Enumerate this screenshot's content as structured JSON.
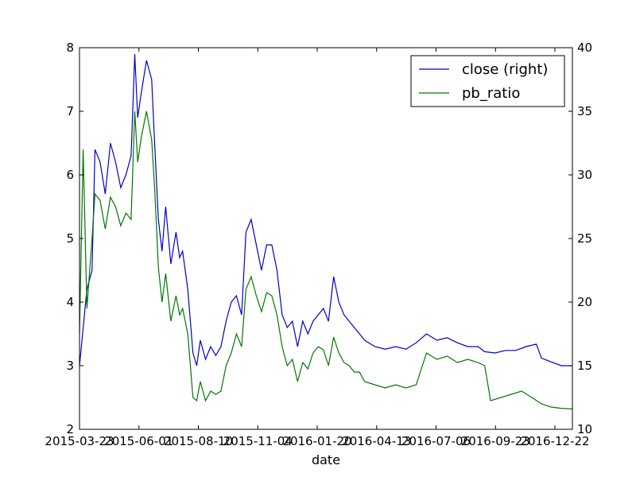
{
  "chart_data": {
    "type": "line",
    "title": "",
    "xlabel": "date",
    "ylabel_left": "",
    "ylabel_right": "",
    "x_tick_labels": [
      "2015-03-23",
      "2015-06-01",
      "2015-08-10",
      "2015-11-04",
      "2016-01-20",
      "2016-04-13",
      "2016-07-06",
      "2016-09-23",
      "2016-12-22"
    ],
    "x_range": [
      "2015-03-23",
      "2017-01-20"
    ],
    "y_left": {
      "range": [
        2,
        8
      ],
      "ticks": [
        2,
        3,
        4,
        5,
        6,
        7,
        8
      ]
    },
    "y_right": {
      "range": [
        10,
        40
      ],
      "ticks": [
        10,
        15,
        20,
        25,
        30,
        35,
        40
      ]
    },
    "grid": false,
    "legend_position": "top-right",
    "series": [
      {
        "name": "close (right)",
        "axis": "right",
        "color": "#0000cc",
        "points": [
          [
            "2015-03-23",
            15.0
          ],
          [
            "2015-04-02",
            21.0
          ],
          [
            "2015-04-09",
            22.5
          ],
          [
            "2015-04-13",
            32.0
          ],
          [
            "2015-04-20",
            31.0
          ],
          [
            "2015-04-27",
            28.5
          ],
          [
            "2015-05-04",
            32.5
          ],
          [
            "2015-05-11",
            31.0
          ],
          [
            "2015-05-18",
            29.0
          ],
          [
            "2015-05-25",
            30.0
          ],
          [
            "2015-06-01",
            31.5
          ],
          [
            "2015-06-06",
            39.5
          ],
          [
            "2015-06-10",
            34.5
          ],
          [
            "2015-06-15",
            36.5
          ],
          [
            "2015-06-22",
            39.0
          ],
          [
            "2015-06-29",
            37.5
          ],
          [
            "2015-07-03",
            32.5
          ],
          [
            "2015-07-08",
            26.5
          ],
          [
            "2015-07-13",
            24.0
          ],
          [
            "2015-07-18",
            27.5
          ],
          [
            "2015-07-25",
            23.0
          ],
          [
            "2015-08-01",
            25.5
          ],
          [
            "2015-08-06",
            23.5
          ],
          [
            "2015-08-10",
            24.0
          ],
          [
            "2015-08-17",
            21.0
          ],
          [
            "2015-08-24",
            16.0
          ],
          [
            "2015-08-29",
            15.0
          ],
          [
            "2015-09-03",
            17.0
          ],
          [
            "2015-09-10",
            15.5
          ],
          [
            "2015-09-17",
            16.5
          ],
          [
            "2015-09-24",
            15.8
          ],
          [
            "2015-10-01",
            16.5
          ],
          [
            "2015-10-08",
            18.5
          ],
          [
            "2015-10-15",
            20.0
          ],
          [
            "2015-10-22",
            20.5
          ],
          [
            "2015-10-29",
            19.0
          ],
          [
            "2015-11-04",
            25.5
          ],
          [
            "2015-11-11",
            26.5
          ],
          [
            "2015-11-18",
            24.5
          ],
          [
            "2015-11-25",
            22.5
          ],
          [
            "2015-12-02",
            24.5
          ],
          [
            "2015-12-09",
            24.5
          ],
          [
            "2015-12-16",
            22.5
          ],
          [
            "2015-12-23",
            19.0
          ],
          [
            "2015-12-30",
            18.0
          ],
          [
            "2016-01-06",
            18.5
          ],
          [
            "2016-01-13",
            16.5
          ],
          [
            "2016-01-20",
            18.5
          ],
          [
            "2016-01-27",
            17.5
          ],
          [
            "2016-02-03",
            18.5
          ],
          [
            "2016-02-10",
            19.0
          ],
          [
            "2016-02-17",
            19.5
          ],
          [
            "2016-02-24",
            18.5
          ],
          [
            "2016-03-02",
            22.0
          ],
          [
            "2016-03-09",
            20.0
          ],
          [
            "2016-03-16",
            19.0
          ],
          [
            "2016-03-23",
            18.5
          ],
          [
            "2016-03-30",
            18.0
          ],
          [
            "2016-04-06",
            17.5
          ],
          [
            "2016-04-13",
            17.0
          ],
          [
            "2016-04-27",
            16.5
          ],
          [
            "2016-05-11",
            16.3
          ],
          [
            "2016-05-25",
            16.5
          ],
          [
            "2016-06-08",
            16.3
          ],
          [
            "2016-06-22",
            16.8
          ],
          [
            "2016-07-06",
            17.5
          ],
          [
            "2016-07-20",
            17.0
          ],
          [
            "2016-08-03",
            17.2
          ],
          [
            "2016-08-17",
            16.8
          ],
          [
            "2016-08-31",
            16.5
          ],
          [
            "2016-09-14",
            16.5
          ],
          [
            "2016-09-23",
            16.1
          ],
          [
            "2016-10-07",
            16.0
          ],
          [
            "2016-10-21",
            16.2
          ],
          [
            "2016-11-04",
            16.2
          ],
          [
            "2016-11-18",
            16.5
          ],
          [
            "2016-12-02",
            16.7
          ],
          [
            "2016-12-09",
            15.6
          ],
          [
            "2016-12-22",
            15.3
          ],
          [
            "2017-01-05",
            15.0
          ],
          [
            "2017-01-20",
            15.0
          ]
        ]
      },
      {
        "name": "pb_ratio",
        "axis": "left",
        "color": "#007700",
        "points": [
          [
            "2015-03-23",
            3.5
          ],
          [
            "2015-03-28",
            6.4
          ],
          [
            "2015-04-02",
            3.9
          ],
          [
            "2015-04-09",
            5.0
          ],
          [
            "2015-04-13",
            5.7
          ],
          [
            "2015-04-20",
            5.6
          ],
          [
            "2015-04-27",
            5.15
          ],
          [
            "2015-05-04",
            5.65
          ],
          [
            "2015-05-11",
            5.5
          ],
          [
            "2015-05-18",
            5.2
          ],
          [
            "2015-05-25",
            5.4
          ],
          [
            "2015-06-01",
            5.3
          ],
          [
            "2015-06-06",
            7.0
          ],
          [
            "2015-06-10",
            6.2
          ],
          [
            "2015-06-15",
            6.6
          ],
          [
            "2015-06-22",
            7.0
          ],
          [
            "2015-06-29",
            6.55
          ],
          [
            "2015-07-03",
            5.8
          ],
          [
            "2015-07-08",
            4.55
          ],
          [
            "2015-07-13",
            4.0
          ],
          [
            "2015-07-18",
            4.45
          ],
          [
            "2015-07-25",
            3.7
          ],
          [
            "2015-08-01",
            4.1
          ],
          [
            "2015-08-06",
            3.8
          ],
          [
            "2015-08-10",
            3.9
          ],
          [
            "2015-08-17",
            3.5
          ],
          [
            "2015-08-24",
            2.5
          ],
          [
            "2015-08-29",
            2.45
          ],
          [
            "2015-09-03",
            2.75
          ],
          [
            "2015-09-10",
            2.45
          ],
          [
            "2015-09-17",
            2.6
          ],
          [
            "2015-09-24",
            2.55
          ],
          [
            "2015-10-01",
            2.6
          ],
          [
            "2015-10-08",
            3.0
          ],
          [
            "2015-10-15",
            3.2
          ],
          [
            "2015-10-22",
            3.5
          ],
          [
            "2015-10-29",
            3.3
          ],
          [
            "2015-11-04",
            4.2
          ],
          [
            "2015-11-11",
            4.4
          ],
          [
            "2015-11-18",
            4.1
          ],
          [
            "2015-11-25",
            3.85
          ],
          [
            "2015-12-02",
            4.15
          ],
          [
            "2015-12-09",
            4.1
          ],
          [
            "2015-12-16",
            3.8
          ],
          [
            "2015-12-23",
            3.3
          ],
          [
            "2015-12-30",
            3.0
          ],
          [
            "2016-01-06",
            3.1
          ],
          [
            "2016-01-13",
            2.75
          ],
          [
            "2016-01-20",
            3.05
          ],
          [
            "2016-01-27",
            2.95
          ],
          [
            "2016-02-03",
            3.2
          ],
          [
            "2016-02-10",
            3.3
          ],
          [
            "2016-02-17",
            3.25
          ],
          [
            "2016-02-24",
            3.0
          ],
          [
            "2016-03-02",
            3.45
          ],
          [
            "2016-03-09",
            3.2
          ],
          [
            "2016-03-16",
            3.05
          ],
          [
            "2016-03-23",
            3.0
          ],
          [
            "2016-03-30",
            2.9
          ],
          [
            "2016-04-06",
            2.9
          ],
          [
            "2016-04-13",
            2.75
          ],
          [
            "2016-04-27",
            2.7
          ],
          [
            "2016-05-11",
            2.65
          ],
          [
            "2016-05-25",
            2.7
          ],
          [
            "2016-06-08",
            2.65
          ],
          [
            "2016-06-22",
            2.7
          ],
          [
            "2016-07-06",
            3.2
          ],
          [
            "2016-07-20",
            3.1
          ],
          [
            "2016-08-03",
            3.15
          ],
          [
            "2016-08-17",
            3.05
          ],
          [
            "2016-08-31",
            3.1
          ],
          [
            "2016-09-14",
            3.05
          ],
          [
            "2016-09-23",
            3.0
          ],
          [
            "2016-10-01",
            2.45
          ],
          [
            "2016-10-15",
            2.5
          ],
          [
            "2016-10-29",
            2.55
          ],
          [
            "2016-11-12",
            2.6
          ],
          [
            "2016-11-26",
            2.5
          ],
          [
            "2016-12-09",
            2.4
          ],
          [
            "2016-12-22",
            2.35
          ],
          [
            "2017-01-05",
            2.33
          ],
          [
            "2017-01-20",
            2.32
          ]
        ]
      }
    ]
  }
}
